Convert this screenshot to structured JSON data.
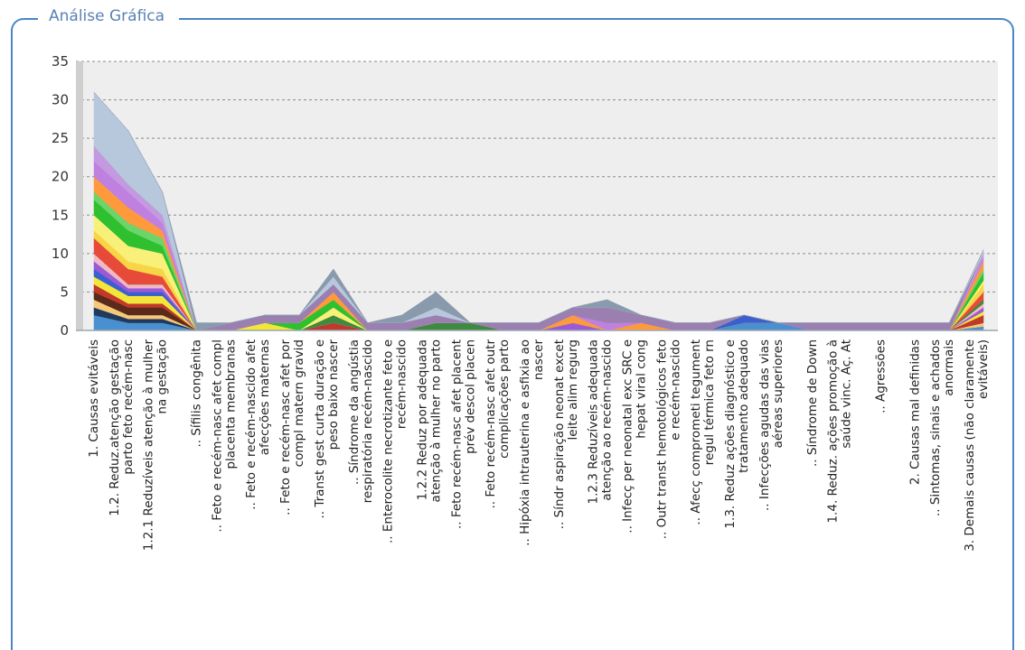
{
  "panel": {
    "title": "Análise Gráfica"
  },
  "chart_data": {
    "type": "area",
    "stacked": true,
    "grid": true,
    "ylim": [
      0,
      35
    ],
    "yticks": [
      0,
      5,
      10,
      15,
      20,
      25,
      30,
      35
    ],
    "categories": [
      [
        "1. Causas evitáveis"
      ],
      [
        "1.2. Reduz.atenção gestação",
        "parto feto recém-nasc"
      ],
      [
        "1.2.1 Reduzíveis atenção à mulher",
        "na gestação"
      ],
      [
        ".. Sífilis congênita"
      ],
      [
        ".. Feto e recém-nasc afet compl",
        "placenta membranas"
      ],
      [
        ".. Feto e recém-nascido afet",
        "afecções maternas"
      ],
      [
        ".. Feto e recém-nasc afet por",
        "compl matern gravid"
      ],
      [
        ".. Transt gest curta duração e",
        "peso baixo nascer"
      ],
      [
        ".. Síndrome da angústia",
        "respiratória recém-nascido"
      ],
      [
        ".. Enterocolite necrotizante feto e",
        "recém-nascido"
      ],
      [
        "1.2.2 Reduz por adequada",
        "atenção à mulher no parto"
      ],
      [
        ".. Feto recém-nasc afet placent",
        "prév descol placen"
      ],
      [
        ".. Feto recém-nasc afet outr",
        "complicações parto"
      ],
      [
        ".. Hipóxia intrauterina e asfixia ao",
        "nascer"
      ],
      [
        ".. Síndr aspiração neonat excet",
        "leite alim regurg"
      ],
      [
        "1.2.3 Reduzíveis adequada",
        "atenção ao recém-nascido"
      ],
      [
        ".. Infecç per neonatal exc SRC e",
        "hepat viral cong"
      ],
      [
        ".. Outr transt hemotológicos feto",
        "e recém-nascido"
      ],
      [
        ".. Afecç comprometi tegument",
        "regul térmica feto rn"
      ],
      [
        "1.3. Reduz ações diagnóstico e",
        "tratamento adequado"
      ],
      [
        ".. Infecções agudas das vias",
        "aéreas superiores"
      ],
      [
        ".. Síndrome de Down"
      ],
      [
        "1.4. Reduz. ações promoção à",
        "saúde vinc. Aç. At"
      ],
      [
        ".. Agressões"
      ],
      [
        "2. Causas mal definidas"
      ],
      [
        ".. Sintomas, sinais e achados",
        "anormais"
      ],
      [
        "3. Demais causas (não claramente",
        "evitáveis)"
      ]
    ],
    "series": [
      {
        "color": "#4a8fcf",
        "values": [
          2,
          1,
          1,
          0,
          0,
          0,
          0,
          0,
          0,
          0,
          0,
          0,
          0,
          0,
          0,
          0,
          0,
          0,
          0,
          1,
          1,
          0,
          0,
          0,
          0,
          0,
          0.5
        ]
      },
      {
        "color": "#1f3a5c",
        "values": [
          1,
          0.5,
          0.5,
          0,
          0,
          0,
          0,
          0,
          0,
          0,
          0,
          0,
          0,
          0,
          0,
          0,
          0,
          0,
          0,
          0,
          0,
          0,
          0,
          0,
          0,
          0,
          0
        ]
      },
      {
        "color": "#f5c87a",
        "values": [
          1,
          0.5,
          0.5,
          0,
          0,
          0,
          0,
          0,
          0,
          0,
          0,
          0,
          0,
          0,
          0,
          0,
          0,
          0,
          0,
          0,
          0,
          0,
          0,
          0,
          0,
          0,
          0.5
        ]
      },
      {
        "color": "#5a2a1a",
        "values": [
          1,
          1,
          1,
          0,
          0,
          0,
          0,
          0,
          0,
          0,
          0,
          0,
          0,
          0,
          0,
          0,
          0,
          0,
          0,
          0,
          0,
          0,
          0,
          0,
          0,
          0,
          0
        ]
      },
      {
        "color": "#c0392b",
        "values": [
          1,
          0.5,
          0.5,
          0,
          0,
          0,
          0,
          1,
          0,
          0,
          0,
          0,
          0,
          0,
          0,
          0,
          0,
          0,
          0,
          0,
          0,
          0,
          0,
          0,
          0,
          0,
          1
        ]
      },
      {
        "color": "#f3e63a",
        "values": [
          1,
          1,
          1,
          0,
          0,
          1,
          0,
          0,
          0,
          0,
          0,
          0,
          0,
          0,
          0,
          0,
          0,
          0,
          0,
          0,
          0,
          0,
          0,
          0,
          0,
          0,
          0.5
        ]
      },
      {
        "color": "#3a5fd0",
        "values": [
          1,
          0.5,
          0.5,
          0,
          0,
          0,
          0,
          0,
          0,
          0,
          0,
          0,
          0,
          0,
          0,
          0,
          0,
          0,
          0,
          1,
          0,
          0,
          0,
          0,
          0,
          0,
          0
        ]
      },
      {
        "color": "#9b59d6",
        "values": [
          1,
          0.5,
          0.5,
          0,
          0,
          0,
          0,
          0,
          0,
          0,
          0,
          0,
          0,
          0,
          1,
          0,
          0,
          0,
          0,
          0,
          0,
          0,
          0,
          0,
          0,
          0,
          0.5
        ]
      },
      {
        "color": "#f2b8c6",
        "values": [
          1,
          0.5,
          0.5,
          0,
          0,
          0,
          0,
          0,
          0,
          0,
          0,
          0,
          0,
          0,
          0,
          0,
          0,
          0,
          0,
          0,
          0,
          0,
          0,
          0,
          0,
          0,
          0.5
        ]
      },
      {
        "color": "#3e8a3e",
        "values": [
          0,
          0,
          0,
          0,
          0,
          0,
          0,
          1,
          0,
          0,
          1,
          1,
          0,
          0,
          0,
          0,
          0,
          0,
          0,
          0,
          0,
          0,
          0,
          0,
          0,
          0,
          0.5
        ]
      },
      {
        "color": "#e84a3a",
        "values": [
          2,
          2,
          1,
          0,
          0,
          0,
          0,
          0,
          0,
          0,
          0,
          0,
          0,
          0,
          0,
          0,
          0,
          0,
          0,
          0,
          0,
          0,
          0,
          0,
          0,
          0,
          1
        ]
      },
      {
        "color": "#f7d547",
        "values": [
          1,
          1,
          1,
          0,
          0,
          0,
          0,
          0,
          0,
          0,
          0,
          0,
          0,
          0,
          0,
          0,
          0,
          0,
          0,
          0,
          0,
          0,
          0,
          0,
          0,
          0,
          1
        ]
      },
      {
        "color": "#f9f07a",
        "values": [
          2,
          2,
          2,
          0,
          0,
          0,
          0,
          1,
          0,
          0,
          0,
          0,
          0,
          0,
          0,
          0,
          0,
          0,
          0,
          0,
          0,
          0,
          0,
          0,
          0,
          0,
          0.5
        ]
      },
      {
        "color": "#2ec02e",
        "values": [
          2,
          2,
          1,
          0,
          0,
          0,
          1,
          1,
          0,
          0,
          0,
          0,
          0,
          0,
          0,
          0,
          0,
          0,
          0,
          0,
          0,
          0,
          0,
          0,
          0,
          0,
          1
        ]
      },
      {
        "color": "#6bd46b",
        "values": [
          1,
          1,
          1,
          0,
          0,
          0,
          0,
          0,
          0,
          0,
          0,
          0,
          0,
          0,
          0,
          0,
          0,
          0,
          0,
          0,
          0,
          0,
          0,
          0,
          0,
          0,
          0.5
        ]
      },
      {
        "color": "#ff9a3c",
        "values": [
          2,
          2,
          1,
          0,
          0,
          0,
          0,
          1,
          0,
          0,
          0,
          0,
          0,
          0,
          1,
          0,
          1,
          0,
          0,
          0,
          0,
          0,
          0,
          0,
          0,
          0,
          1
        ]
      },
      {
        "color": "#c080e0",
        "values": [
          2,
          2,
          1,
          0,
          0,
          0,
          0,
          0,
          0,
          0,
          0,
          0,
          0,
          0,
          0,
          1,
          0,
          0,
          0,
          0,
          0,
          0,
          0,
          0,
          0,
          0,
          0.5
        ]
      },
      {
        "color": "#c39adf",
        "values": [
          2,
          1,
          1,
          0,
          0,
          0,
          0,
          0,
          0,
          0,
          0,
          0,
          0,
          0,
          0,
          0,
          0,
          0,
          0,
          0,
          0,
          0,
          0,
          0,
          0,
          0,
          0.5
        ]
      },
      {
        "color": "#9a7fb0",
        "values": [
          0,
          0,
          0,
          0,
          1,
          1,
          1,
          1,
          1,
          1,
          1,
          0,
          1,
          1,
          1,
          2,
          1,
          1,
          1,
          0,
          0,
          1,
          1,
          1,
          1,
          1,
          0
        ]
      },
      {
        "color": "#b8c8dc",
        "values": [
          7,
          7,
          3,
          0,
          0,
          0,
          0,
          1,
          0,
          0,
          1,
          0,
          0,
          0,
          0,
          0,
          0,
          0,
          0,
          0,
          0,
          0,
          0,
          0,
          0,
          0,
          0.5
        ]
      },
      {
        "color": "#8a9aad",
        "values": [
          0,
          0,
          0,
          1,
          0,
          0,
          0,
          1,
          0,
          1,
          2,
          0,
          0,
          0,
          0,
          1,
          0,
          0,
          0,
          0,
          0,
          0,
          0,
          0,
          0,
          0,
          0
        ]
      }
    ]
  }
}
